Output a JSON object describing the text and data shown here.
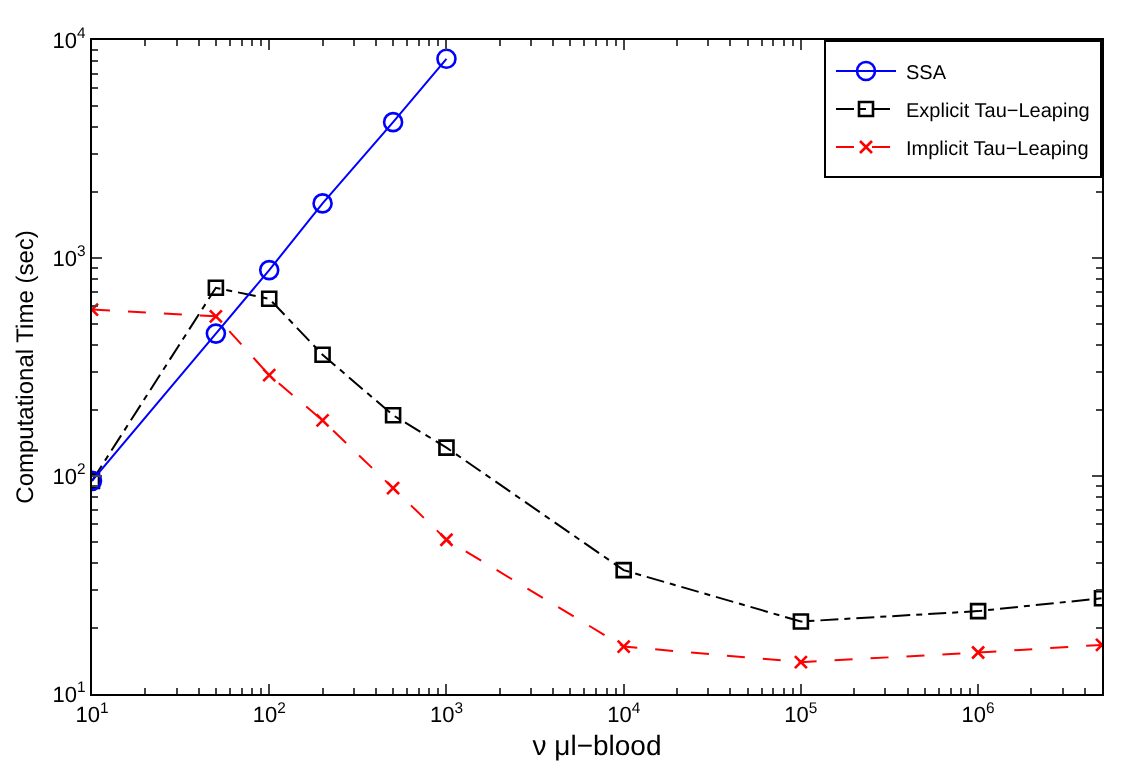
{
  "chart_data": {
    "type": "line",
    "xlabel": "ν μl−blood",
    "ylabel": "Computational Time (sec)",
    "log": "xy",
    "xlim": [
      10,
      5000000
    ],
    "ylim": [
      10,
      10000
    ],
    "xticks": [
      {
        "value": 10,
        "label": "10$^{1}$"
      },
      {
        "value": 100,
        "label": "10$^{2}$"
      },
      {
        "value": 1000,
        "label": "10$^{3}$"
      },
      {
        "value": 10000,
        "label": "10$^{4}$"
      },
      {
        "value": 100000,
        "label": "10$^{5}$"
      },
      {
        "value": 1000000,
        "label": "10$^{6}$"
      }
    ],
    "yticks": [
      {
        "value": 10,
        "label": "10$^{1}$"
      },
      {
        "value": 100,
        "label": "10$^{2}$"
      },
      {
        "value": 1000,
        "label": "10$^{3}$"
      },
      {
        "value": 10000,
        "label": "10$^{4}$"
      }
    ],
    "legend": "top right",
    "series": [
      {
        "name": "SSA",
        "color": "#0000ff",
        "marker": "circle",
        "line_style": "solid",
        "x": [
          10,
          50,
          100,
          200,
          500,
          1000
        ],
        "values": [
          95,
          450,
          880,
          1780,
          4200,
          8200
        ]
      },
      {
        "name": "Explicit Tau−Leaping",
        "color": "#000000",
        "marker": "square",
        "line_style": "dashdot",
        "x": [
          10,
          50,
          100,
          200,
          500,
          1000,
          10000,
          100000,
          1000000,
          5000000
        ],
        "values": [
          95,
          730,
          650,
          360,
          190,
          135,
          37,
          21.5,
          24,
          27.5
        ]
      },
      {
        "name": "Implicit Tau−Leaping",
        "color": "#ff0000",
        "marker": "cross",
        "line_style": "dashed",
        "x": [
          10,
          50,
          100,
          200,
          500,
          1000,
          10000,
          100000,
          1000000,
          5000000
        ],
        "values": [
          580,
          540,
          290,
          180,
          88,
          51,
          16.5,
          14,
          15.5,
          16.8
        ]
      }
    ]
  }
}
